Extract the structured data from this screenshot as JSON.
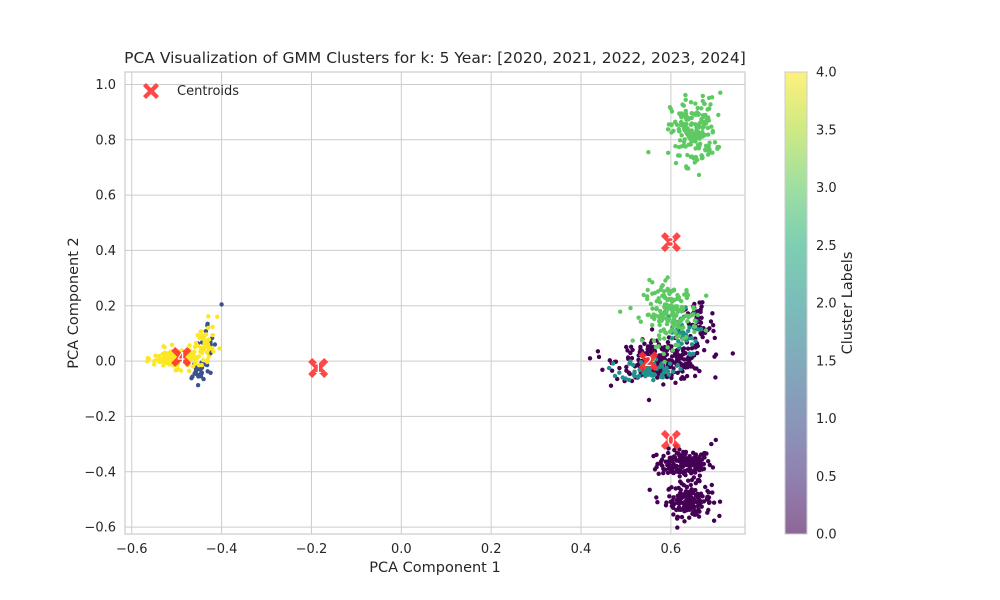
{
  "chart_data": {
    "type": "scatter",
    "title": "PCA Visualization of GMM Clusters for k: 5 Year: [2020, 2021, 2022, 2023, 2024]",
    "xlabel": "PCA Component 1",
    "ylabel": "PCA Component 2",
    "xlim": [
      -0.615,
      0.765
    ],
    "ylim": [
      -0.625,
      1.045
    ],
    "xticks": [
      "−0.6",
      "−0.4",
      "−0.2",
      "0.0",
      "0.2",
      "0.4",
      "0.6"
    ],
    "yticks": [
      "−0.6",
      "−0.4",
      "−0.2",
      "0.0",
      "0.2",
      "0.4",
      "0.6",
      "0.8",
      "1.0"
    ],
    "grid": true,
    "legend": {
      "position": "top-left",
      "entries": [
        "Centroids"
      ]
    },
    "colorbar": {
      "label": "Cluster Labels",
      "range": [
        0.0,
        4.0
      ],
      "ticks": [
        "0.0",
        "0.5",
        "1.0",
        "1.5",
        "2.0",
        "2.5",
        "3.0",
        "3.5",
        "4.0"
      ],
      "colormap": "viridis"
    },
    "centroids": [
      {
        "label": "0",
        "x": 0.6,
        "y": -0.285
      },
      {
        "label": "1",
        "x": -0.185,
        "y": -0.025
      },
      {
        "label": "2",
        "x": 0.55,
        "y": 0.0
      },
      {
        "label": "3",
        "x": 0.6,
        "y": 0.43
      },
      {
        "label": "4",
        "x": -0.49,
        "y": 0.015
      }
    ],
    "clusters": [
      {
        "label": 0,
        "color": "#440154",
        "regions": [
          {
            "cx": 0.63,
            "cy": -0.37,
            "sx": 0.03,
            "sy": 0.025,
            "n": 160
          },
          {
            "cx": 0.64,
            "cy": -0.5,
            "sx": 0.025,
            "sy": 0.03,
            "n": 160
          },
          {
            "cx": 0.58,
            "cy": 0.0,
            "sx": 0.05,
            "sy": 0.035,
            "n": 260
          },
          {
            "cx": 0.66,
            "cy": 0.13,
            "sx": 0.02,
            "sy": 0.05,
            "n": 60
          }
        ],
        "samples": [
          [
            0.69,
            -0.3
          ],
          [
            0.7,
            -0.285
          ],
          [
            0.57,
            -0.51
          ],
          [
            0.44,
            0.015
          ],
          [
            0.42,
            0.01
          ],
          [
            0.65,
            -0.545
          ],
          [
            0.66,
            -0.39
          ]
        ]
      },
      {
        "label": 1,
        "color": "#3b528b",
        "regions": [
          {
            "cx": -0.45,
            "cy": -0.03,
            "sx": 0.012,
            "sy": 0.02,
            "n": 25
          },
          {
            "cx": -0.43,
            "cy": 0.06,
            "sx": 0.012,
            "sy": 0.04,
            "n": 18
          }
        ],
        "samples": [
          [
            -0.4,
            0.205
          ],
          [
            -0.44,
            -0.065
          ],
          [
            -0.46,
            -0.045
          ]
        ]
      },
      {
        "label": 2,
        "color": "#21918c",
        "regions": [
          {
            "cx": 0.55,
            "cy": -0.03,
            "sx": 0.03,
            "sy": 0.02,
            "n": 70
          },
          {
            "cx": 0.62,
            "cy": 0.1,
            "sx": 0.02,
            "sy": 0.04,
            "n": 40
          }
        ],
        "samples": []
      },
      {
        "label": 3,
        "color": "#5ec962",
        "regions": [
          {
            "cx": 0.65,
            "cy": 0.83,
            "sx": 0.025,
            "sy": 0.06,
            "n": 180
          },
          {
            "cx": 0.6,
            "cy": 0.17,
            "sx": 0.03,
            "sy": 0.055,
            "n": 180
          }
        ],
        "samples": [
          [
            0.55,
            0.755
          ],
          [
            0.71,
            0.97
          ],
          [
            0.6,
            0.25
          ],
          [
            0.63,
            0.24
          ]
        ]
      },
      {
        "label": 4,
        "color": "#fde725",
        "regions": [
          {
            "cx": -0.5,
            "cy": 0.01,
            "sx": 0.025,
            "sy": 0.018,
            "n": 140
          },
          {
            "cx": -0.44,
            "cy": 0.06,
            "sx": 0.012,
            "sy": 0.035,
            "n": 40
          }
        ],
        "samples": [
          [
            -0.41,
            0.16
          ],
          [
            -0.43,
            0.12
          ],
          [
            -0.55,
            0.0
          ]
        ]
      }
    ]
  }
}
